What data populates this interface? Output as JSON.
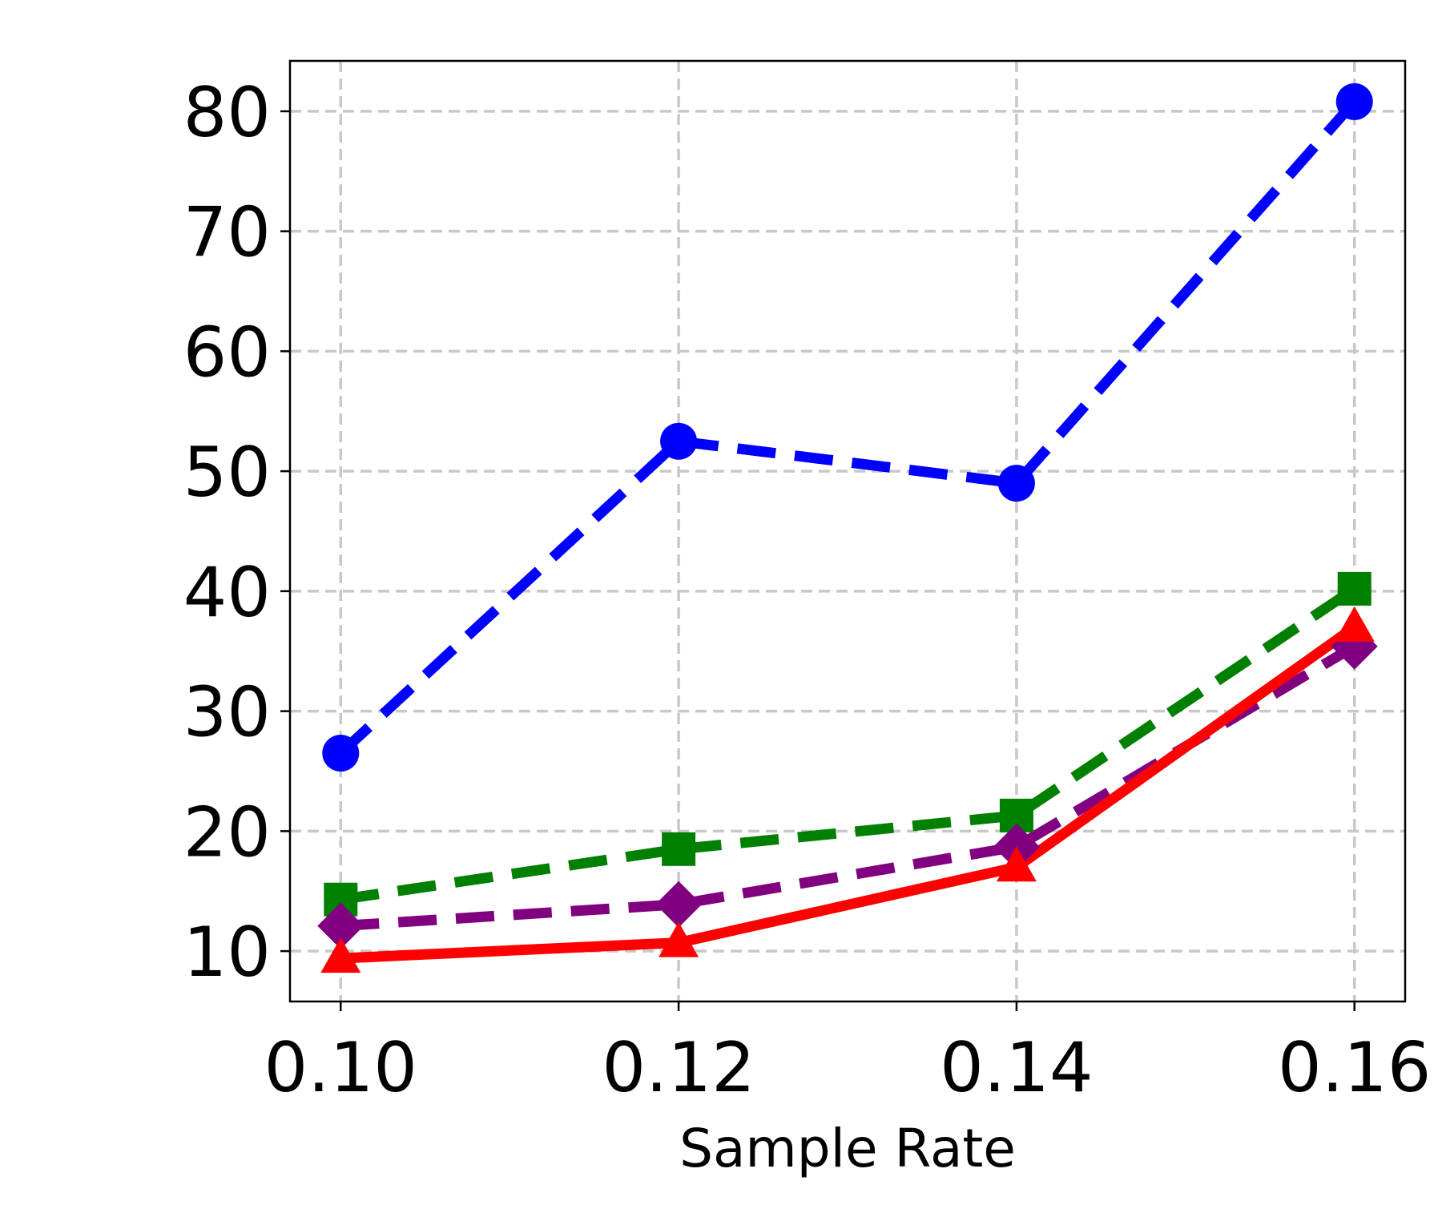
{
  "chart_data": {
    "type": "line",
    "xlabel": "Sample Rate",
    "ylabel": "",
    "title": "",
    "x": [
      0.1,
      0.12,
      0.14,
      0.16
    ],
    "x_tick_labels": [
      "0.10",
      "0.12",
      "0.14",
      "0.16"
    ],
    "xlim": [
      0.097,
      0.163
    ],
    "ylim": [
      5.8,
      84.2
    ],
    "y_ticks": [
      10,
      20,
      30,
      40,
      50,
      60,
      70,
      80
    ],
    "y_tick_labels": [
      "10",
      "20",
      "30",
      "40",
      "50",
      "60",
      "70",
      "80"
    ],
    "grid": true,
    "legend": "none",
    "series": [
      {
        "color": "#0000ff",
        "marker": "circle",
        "line_style": "dashed",
        "values": [
          26.5,
          52.5,
          49.0,
          80.8
        ]
      },
      {
        "color": "#008000",
        "marker": "square",
        "line_style": "dashed",
        "values": [
          14.3,
          18.5,
          21.3,
          40.2
        ]
      },
      {
        "color": "#800080",
        "marker": "diamond",
        "line_style": "dashed",
        "values": [
          12.1,
          13.9,
          18.7,
          35.4
        ]
      },
      {
        "color": "#ff0000",
        "marker": "triangle-up",
        "line_style": "solid",
        "values": [
          9.4,
          10.7,
          17.0,
          37.0
        ]
      }
    ]
  }
}
